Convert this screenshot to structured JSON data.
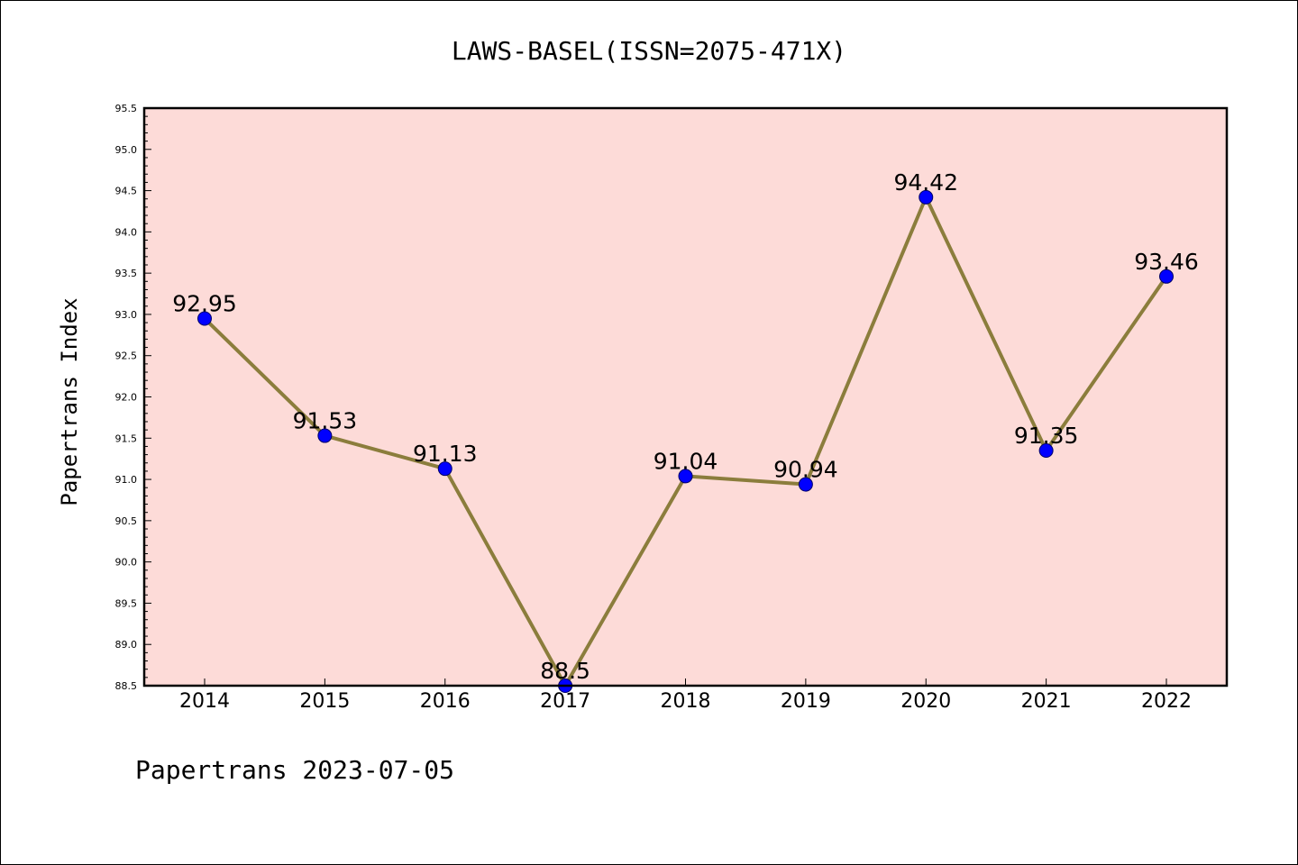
{
  "chart_data": {
    "type": "line",
    "title": "LAWS-BASEL(ISSN=2075-471X)",
    "ylabel": "Papertrans Index",
    "xlabel": "",
    "x": [
      "2014",
      "2015",
      "2016",
      "2017",
      "2018",
      "2019",
      "2020",
      "2021",
      "2022"
    ],
    "values": [
      92.95,
      91.53,
      91.13,
      88.5,
      91.04,
      90.94,
      94.42,
      91.35,
      93.46
    ],
    "data_labels": [
      "92.95",
      "91.53",
      "91.13",
      "88.5",
      "91.04",
      "90.94",
      "94.42",
      "91.35",
      "93.46"
    ],
    "ylim": [
      88.5,
      95.5
    ],
    "yticks": [
      "88.5",
      "89.0",
      "89.5",
      "90.0",
      "90.5",
      "91.0",
      "91.5",
      "92.0",
      "92.5",
      "93.0",
      "93.5",
      "94.0",
      "94.5",
      "95.0",
      "95.5"
    ],
    "grid": false,
    "legend": "none",
    "colors": {
      "plot_background": "#fddbd8",
      "line": "#8b7d3c",
      "marker": "#0000ff",
      "marker_edge": "#000066"
    }
  },
  "footer": "Papertrans 2023-07-05"
}
